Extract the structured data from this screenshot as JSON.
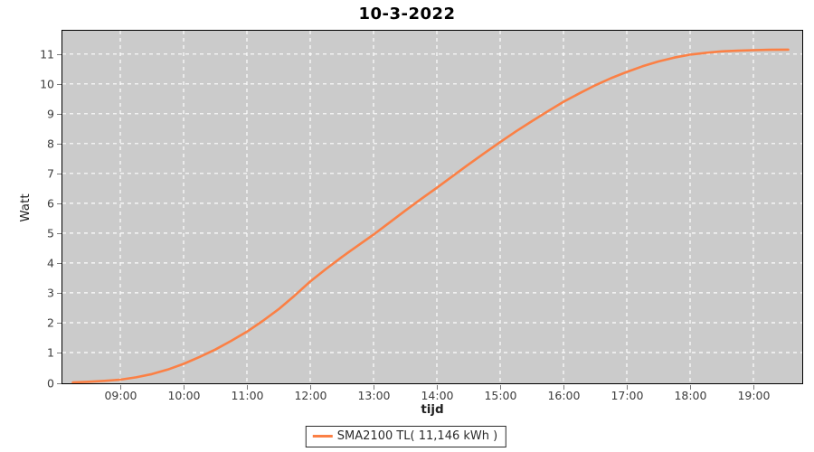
{
  "chart": {
    "title": "10-3-2022",
    "plot_bg_color": "#cbcbcb",
    "grid_color": "#ffffff",
    "border_color": "#000000",
    "series_color": "#fb8045"
  },
  "legend": {
    "label": "SMA2100 TL( 11,146 kWh )",
    "swatch_color": "#fb8045"
  },
  "chart_data": {
    "type": "line",
    "title": "10-3-2022",
    "xlabel": "tijd",
    "ylabel": "Watt",
    "x_tick_labels": [
      "09:00",
      "10:00",
      "11:00",
      "12:00",
      "13:00",
      "14:00",
      "15:00",
      "16:00",
      "17:00",
      "18:00",
      "19:00"
    ],
    "x_tick_hours": [
      9,
      10,
      11,
      12,
      13,
      14,
      15,
      16,
      17,
      18,
      19
    ],
    "y_tick_labels": [
      "0",
      "1",
      "2",
      "3",
      "4",
      "5",
      "6",
      "7",
      "8",
      "9",
      "10",
      "11"
    ],
    "y_tick_values": [
      0,
      1,
      2,
      3,
      4,
      5,
      6,
      7,
      8,
      9,
      10,
      11
    ],
    "x_range_hours": [
      8.086,
      19.772
    ],
    "ylim": [
      0,
      11.78
    ],
    "grid": "white dashed",
    "legend_position": "bottom",
    "series": [
      {
        "name": "SMA2100 TL( 11,146 kWh )",
        "color": "#fb8045",
        "final_total_kwh": "11,146",
        "x_hours": [
          8.25,
          8.5,
          8.75,
          9.0,
          9.25,
          9.5,
          9.75,
          10.0,
          10.25,
          10.5,
          10.75,
          11.0,
          11.25,
          11.5,
          11.75,
          12.0,
          12.25,
          12.5,
          12.75,
          13.0,
          13.25,
          13.5,
          13.75,
          14.0,
          14.25,
          14.5,
          14.75,
          15.0,
          15.25,
          15.5,
          15.75,
          16.0,
          16.25,
          16.5,
          16.75,
          17.0,
          17.25,
          17.5,
          17.75,
          18.0,
          18.25,
          18.5,
          18.75,
          19.0,
          19.25,
          19.55
        ],
        "values": [
          0.0,
          0.02,
          0.05,
          0.09,
          0.17,
          0.28,
          0.43,
          0.62,
          0.85,
          1.1,
          1.39,
          1.7,
          2.06,
          2.45,
          2.9,
          3.38,
          3.8,
          4.2,
          4.58,
          4.95,
          5.35,
          5.75,
          6.14,
          6.52,
          6.91,
          7.3,
          7.68,
          8.05,
          8.41,
          8.75,
          9.08,
          9.4,
          9.68,
          9.95,
          10.19,
          10.4,
          10.59,
          10.75,
          10.88,
          10.98,
          11.04,
          11.09,
          11.11,
          11.13,
          11.14,
          11.146
        ]
      }
    ]
  }
}
